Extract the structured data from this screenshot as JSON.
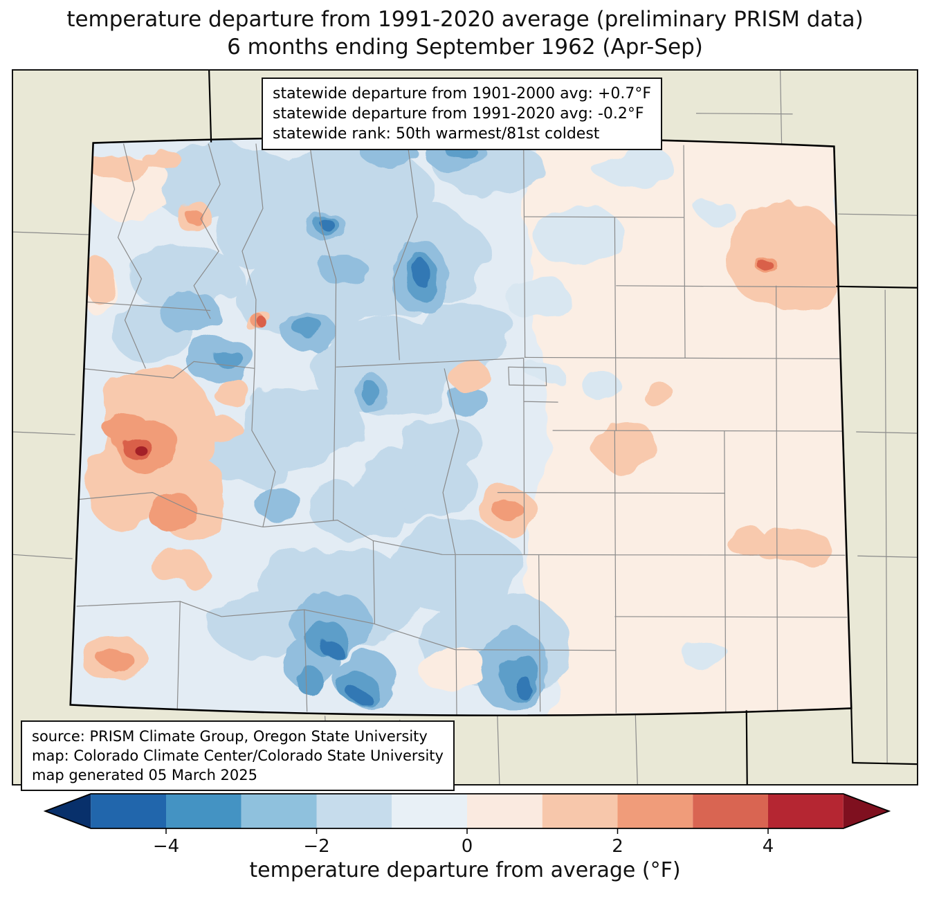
{
  "title": {
    "line1": "temperature departure from 1991-2020 average (preliminary PRISM data)",
    "line2": "6 months ending September 1962 (Apr-Sep)"
  },
  "stats_box": {
    "lines": [
      "statewide departure from 1901-2000 avg: +0.7°F",
      "statewide departure from 1991-2020 avg: -0.2°F",
      "statewide rank: 50th warmest/81st coldest"
    ]
  },
  "source_box": {
    "lines": [
      "source: PRISM Climate Group, Oregon State University",
      "map: Colorado Climate Center/Colorado State University",
      "map generated 05 March 2025"
    ]
  },
  "colorbar": {
    "label": "temperature departure from average (°F)",
    "min": -5,
    "max": 5,
    "ticks": [
      {
        "value": -4,
        "label": "−4"
      },
      {
        "value": -2,
        "label": "−2"
      },
      {
        "value": 0,
        "label": "0"
      },
      {
        "value": 2,
        "label": "2"
      },
      {
        "value": 4,
        "label": "4"
      }
    ],
    "left_arrow_color": "#08306b",
    "right_arrow_color": "#7f101f",
    "bands": [
      {
        "from": -5,
        "to": -4,
        "color": "#2166ac"
      },
      {
        "from": -4,
        "to": -3,
        "color": "#4493c3"
      },
      {
        "from": -3,
        "to": -2,
        "color": "#8fc1dd"
      },
      {
        "from": -2,
        "to": -1,
        "color": "#c6dcec"
      },
      {
        "from": -1,
        "to": 0,
        "color": "#e8f0f6"
      },
      {
        "from": 0,
        "to": 1,
        "color": "#faeae0"
      },
      {
        "from": 1,
        "to": 2,
        "color": "#f7c7ab"
      },
      {
        "from": 2,
        "to": 3,
        "color": "#f09c7a"
      },
      {
        "from": 3,
        "to": 4,
        "color": "#d96552"
      },
      {
        "from": 4,
        "to": 5,
        "color": "#b52632"
      }
    ]
  },
  "map": {
    "palette": {
      "background": "#e9e8d6",
      "state_base": "#e3ecf4",
      "east_base": "#fbeee4",
      "pale_blue": "#d9e7f1",
      "light_blue": "#c2d9ea",
      "mid_blue": "#92bedd",
      "blue": "#5d9ec9",
      "dark_blue": "#3178b4",
      "pale_pink": "#fbece1",
      "light_orange": "#f8c9ad",
      "orange": "#f19c78",
      "red": "#d9604a",
      "dark_red": "#a32027",
      "county_line": "#8a8a8a",
      "state_border": "#000000"
    }
  }
}
